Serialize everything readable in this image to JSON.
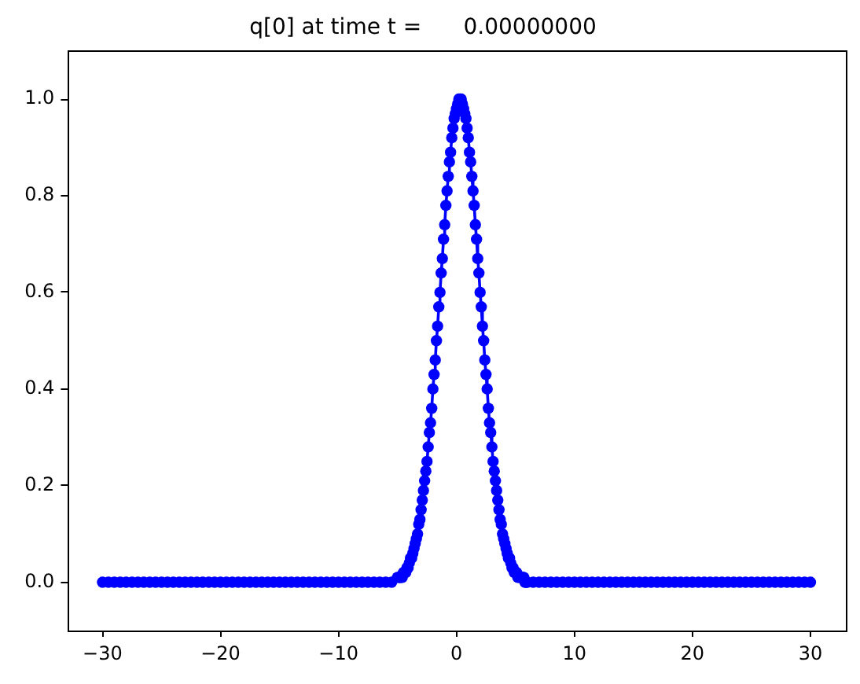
{
  "chart_data": {
    "type": "line",
    "title": "q[0] at time t =      0.00000000",
    "x": [
      -30,
      -29.5,
      -29,
      -28.5,
      -28,
      -27.5,
      -27,
      -26.5,
      -26,
      -25.5,
      -25,
      -24.5,
      -24,
      -23.5,
      -23,
      -22.5,
      -22,
      -21.5,
      -21,
      -20.5,
      -20,
      -19.5,
      -19,
      -18.5,
      -18,
      -17.5,
      -17,
      -16.5,
      -16,
      -15.5,
      -15,
      -14.5,
      -14,
      -13.5,
      -13,
      -12.5,
      -12,
      -11.5,
      -11,
      -10.5,
      -10,
      -9.5,
      -9,
      -8.5,
      -8,
      -7.5,
      -7,
      -6.5,
      -6,
      -5.5,
      -5,
      -4.9,
      -4.8,
      -4.7,
      -4.6,
      -4.5,
      -4.4,
      -4.3,
      -4.2,
      -4.1,
      -4,
      -3.9,
      -3.8,
      -3.7,
      -3.6,
      -3.5,
      -3.4,
      -3.3,
      -3.2,
      -3.1,
      -3,
      -2.9,
      -2.8,
      -2.7,
      -2.6,
      -2.5,
      -2.4,
      -2.3,
      -2.2,
      -2.1,
      -2,
      -1.9,
      -1.8,
      -1.7,
      -1.6,
      -1.5,
      -1.4,
      -1.3,
      -1.2,
      -1.1,
      -1,
      -0.9,
      -0.8,
      -0.7,
      -0.6,
      -0.5,
      -0.4,
      -0.3,
      -0.2,
      -0.1,
      0,
      0.1,
      0.2,
      0.3,
      0.4,
      0.5,
      0.6,
      0.7,
      0.8,
      0.9,
      1,
      1.1,
      1.2,
      1.3,
      1.4,
      1.5,
      1.6,
      1.7,
      1.8,
      1.9,
      2,
      2.1,
      2.2,
      2.3,
      2.4,
      2.5,
      2.6,
      2.7,
      2.8,
      2.9,
      3,
      3.1,
      3.2,
      3.3,
      3.4,
      3.5,
      3.6,
      3.7,
      3.8,
      3.9,
      4,
      4.1,
      4.2,
      4.3,
      4.4,
      4.5,
      4.6,
      4.7,
      4.8,
      4.9,
      5,
      5.1,
      5.2,
      5.3,
      5.4,
      5.5,
      5.6,
      5.7,
      5.8,
      5.9,
      6,
      6.5,
      7,
      7.5,
      8,
      8.5,
      9,
      9.5,
      10,
      10.5,
      11,
      11.5,
      12,
      12.5,
      13,
      13.5,
      14,
      14.5,
      15,
      15.5,
      16,
      16.5,
      17,
      17.5,
      18,
      18.5,
      19,
      19.5,
      20,
      20.5,
      21,
      21.5,
      22,
      22.5,
      23,
      23.5,
      24,
      24.5,
      25,
      25.5,
      26,
      26.5,
      27,
      27.5,
      28,
      28.5,
      29,
      29.5,
      30
    ],
    "series": [
      {
        "color": "#0000ff",
        "values": [
          0,
          0,
          0,
          0,
          0,
          0,
          0,
          0,
          0,
          0,
          0,
          0,
          0,
          0,
          0,
          0,
          0,
          0,
          0,
          0,
          0,
          0,
          0,
          0,
          0,
          0,
          0,
          0,
          0,
          0,
          0,
          0,
          0,
          0,
          0,
          0,
          0,
          0,
          0,
          0,
          0,
          0,
          0,
          0,
          0,
          0,
          0,
          0,
          0,
          0,
          0.01,
          0.01,
          0.01,
          0.01,
          0.01,
          0.02,
          0.02,
          0.02,
          0.03,
          0.03,
          0.04,
          0.05,
          0.05,
          0.06,
          0.07,
          0.08,
          0.09,
          0.1,
          0.12,
          0.13,
          0.15,
          0.17,
          0.19,
          0.21,
          0.23,
          0.25,
          0.28,
          0.31,
          0.33,
          0.36,
          0.4,
          0.43,
          0.46,
          0.5,
          0.53,
          0.57,
          0.6,
          0.64,
          0.67,
          0.71,
          0.74,
          0.78,
          0.81,
          0.84,
          0.87,
          0.89,
          0.92,
          0.94,
          0.96,
          0.97,
          0.98,
          0.99,
          1,
          1,
          1,
          0.99,
          0.98,
          0.97,
          0.96,
          0.94,
          0.92,
          0.89,
          0.87,
          0.84,
          0.81,
          0.78,
          0.74,
          0.71,
          0.67,
          0.64,
          0.6,
          0.57,
          0.53,
          0.5,
          0.46,
          0.43,
          0.4,
          0.36,
          0.33,
          0.31,
          0.28,
          0.25,
          0.23,
          0.21,
          0.19,
          0.17,
          0.15,
          0.13,
          0.12,
          0.1,
          0.09,
          0.08,
          0.07,
          0.06,
          0.05,
          0.05,
          0.04,
          0.03,
          0.03,
          0.02,
          0.02,
          0.02,
          0.01,
          0.01,
          0.01,
          0.01,
          0.01,
          0.01,
          0,
          0,
          0,
          0,
          0,
          0,
          0,
          0,
          0,
          0,
          0,
          0,
          0,
          0,
          0,
          0,
          0,
          0,
          0,
          0,
          0,
          0,
          0,
          0,
          0,
          0,
          0,
          0,
          0,
          0,
          0,
          0,
          0,
          0,
          0,
          0,
          0,
          0,
          0,
          0,
          0,
          0,
          0,
          0,
          0,
          0,
          0,
          0,
          0,
          0,
          0
        ]
      }
    ],
    "xlim": [
      -33,
      33
    ],
    "xticks": [
      {
        "value": -30,
        "label": "−30"
      },
      {
        "value": -20,
        "label": "−20"
      },
      {
        "value": -10,
        "label": "−10"
      },
      0,
      10,
      20,
      30
    ],
    "ylim": [
      -0.1,
      1.1
    ],
    "yticks": [
      {
        "value": 0,
        "label": "0.0"
      },
      0.2,
      0.4,
      0.6,
      0.8,
      {
        "value": 1,
        "label": "1.0"
      }
    ],
    "marker": "circle",
    "grid": false,
    "legend": false
  }
}
